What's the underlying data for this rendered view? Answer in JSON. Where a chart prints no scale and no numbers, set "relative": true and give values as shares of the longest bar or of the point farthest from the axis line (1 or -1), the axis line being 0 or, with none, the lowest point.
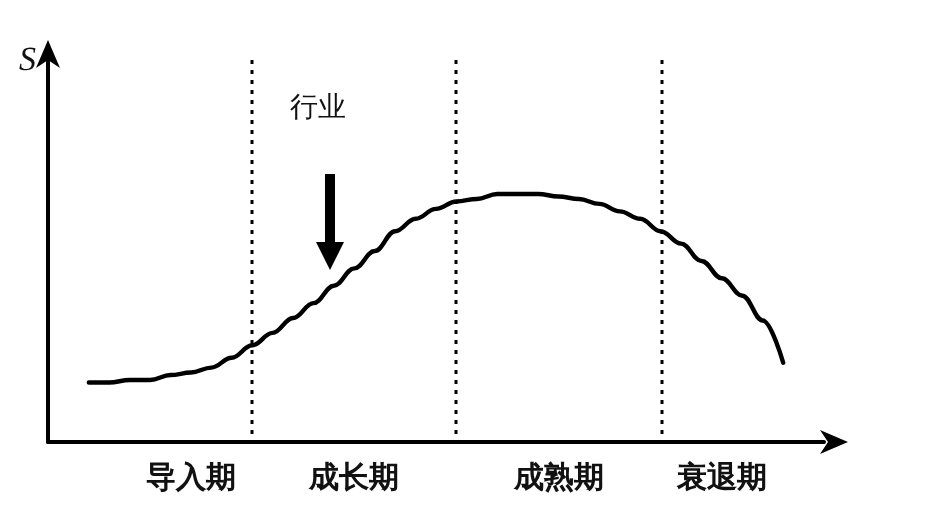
{
  "chart_data": {
    "type": "line",
    "relative": true,
    "ylabel": "S",
    "grid": "x",
    "marker": "none",
    "color": "#000000",
    "categories": [
      null,
      null,
      null,
      null,
      null,
      null,
      null,
      "导入期",
      null,
      null,
      null,
      null,
      null,
      null,
      null,
      "成长期",
      null,
      null,
      null,
      null,
      null,
      null,
      null,
      null,
      null,
      "成熟期",
      null,
      null,
      null,
      null,
      null,
      null,
      null,
      "衰退期",
      null,
      null,
      null,
      null,
      null
    ],
    "values": [
      null,
      null,
      0.24,
      0.24,
      0.25,
      0.25,
      0.27,
      0.28,
      0.3,
      0.34,
      0.39,
      0.44,
      0.5,
      0.56,
      0.63,
      0.7,
      0.77,
      0.85,
      0.9,
      0.94,
      0.97,
      0.98,
      1,
      1,
      1,
      0.99,
      0.98,
      0.96,
      0.93,
      0.9,
      0.85,
      0.8,
      0.73,
      0.66,
      0.59,
      0.49,
      0.32,
      null,
      null
    ],
    "annotations": [
      "行业"
    ]
  }
}
